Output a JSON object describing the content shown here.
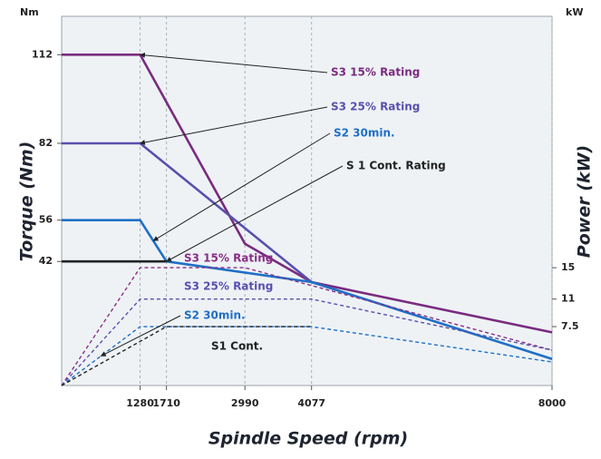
{
  "chart_data": {
    "type": "line",
    "x_label": "Spindle Speed (rpm)",
    "y_label": "Torque (Nm)",
    "y2_label": "Power (kW)",
    "y_unit": "Nm",
    "y2_unit": "kW",
    "xlim": [
      0,
      8000
    ],
    "xticks": [
      1280,
      1710,
      2990,
      4077,
      8000
    ],
    "ylim": [
      0,
      125
    ],
    "yticks": [
      42,
      56,
      82,
      112
    ],
    "y2lim": [
      0,
      47
    ],
    "y2ticks": [
      7.5,
      11,
      15
    ],
    "grid": true,
    "series": [
      {
        "name": "S3 15% Rating",
        "color": "#7a2b80",
        "x": [
          0,
          1280,
          2990,
          4077,
          8000
        ],
        "values": [
          112,
          112,
          48,
          35,
          18
        ]
      },
      {
        "name": "S3 25% Rating",
        "color": "#5a4fae",
        "x": [
          0,
          1280,
          4077
        ],
        "values": [
          82,
          82,
          35
        ]
      },
      {
        "name": "S2 30min.",
        "color": "#1f6fc6",
        "x": [
          0,
          1280,
          1710,
          4077,
          8000
        ],
        "values": [
          56,
          56,
          42,
          35,
          9
        ]
      },
      {
        "name": "S 1 Cont. Rating",
        "color": "#222222",
        "x": [
          0,
          1710
        ],
        "values": [
          42,
          42
        ]
      },
      {
        "name": "S3 15% Rating",
        "color": "#8a2f86",
        "axis": "y2",
        "style": "dashed",
        "x": [
          0,
          1280,
          2990,
          8000
        ],
        "values": [
          0,
          15,
          15,
          4.5
        ]
      },
      {
        "name": "S3 25% Rating",
        "color": "#5a4fae",
        "axis": "y2",
        "style": "dashed",
        "x": [
          0,
          1280,
          4077,
          8000
        ],
        "values": [
          0,
          11,
          11,
          4.5
        ]
      },
      {
        "name": "S2 30min.",
        "color": "#1f6fc6",
        "axis": "y2",
        "style": "dashed",
        "x": [
          0,
          1280,
          4077,
          8000
        ],
        "values": [
          0,
          7.5,
          7.5,
          3
        ]
      },
      {
        "name": "S1 Cont.",
        "color": "#222222",
        "axis": "y2",
        "style": "dashed",
        "x": [
          0,
          1710,
          4077
        ],
        "values": [
          0,
          7.5,
          7.5
        ]
      }
    ]
  }
}
